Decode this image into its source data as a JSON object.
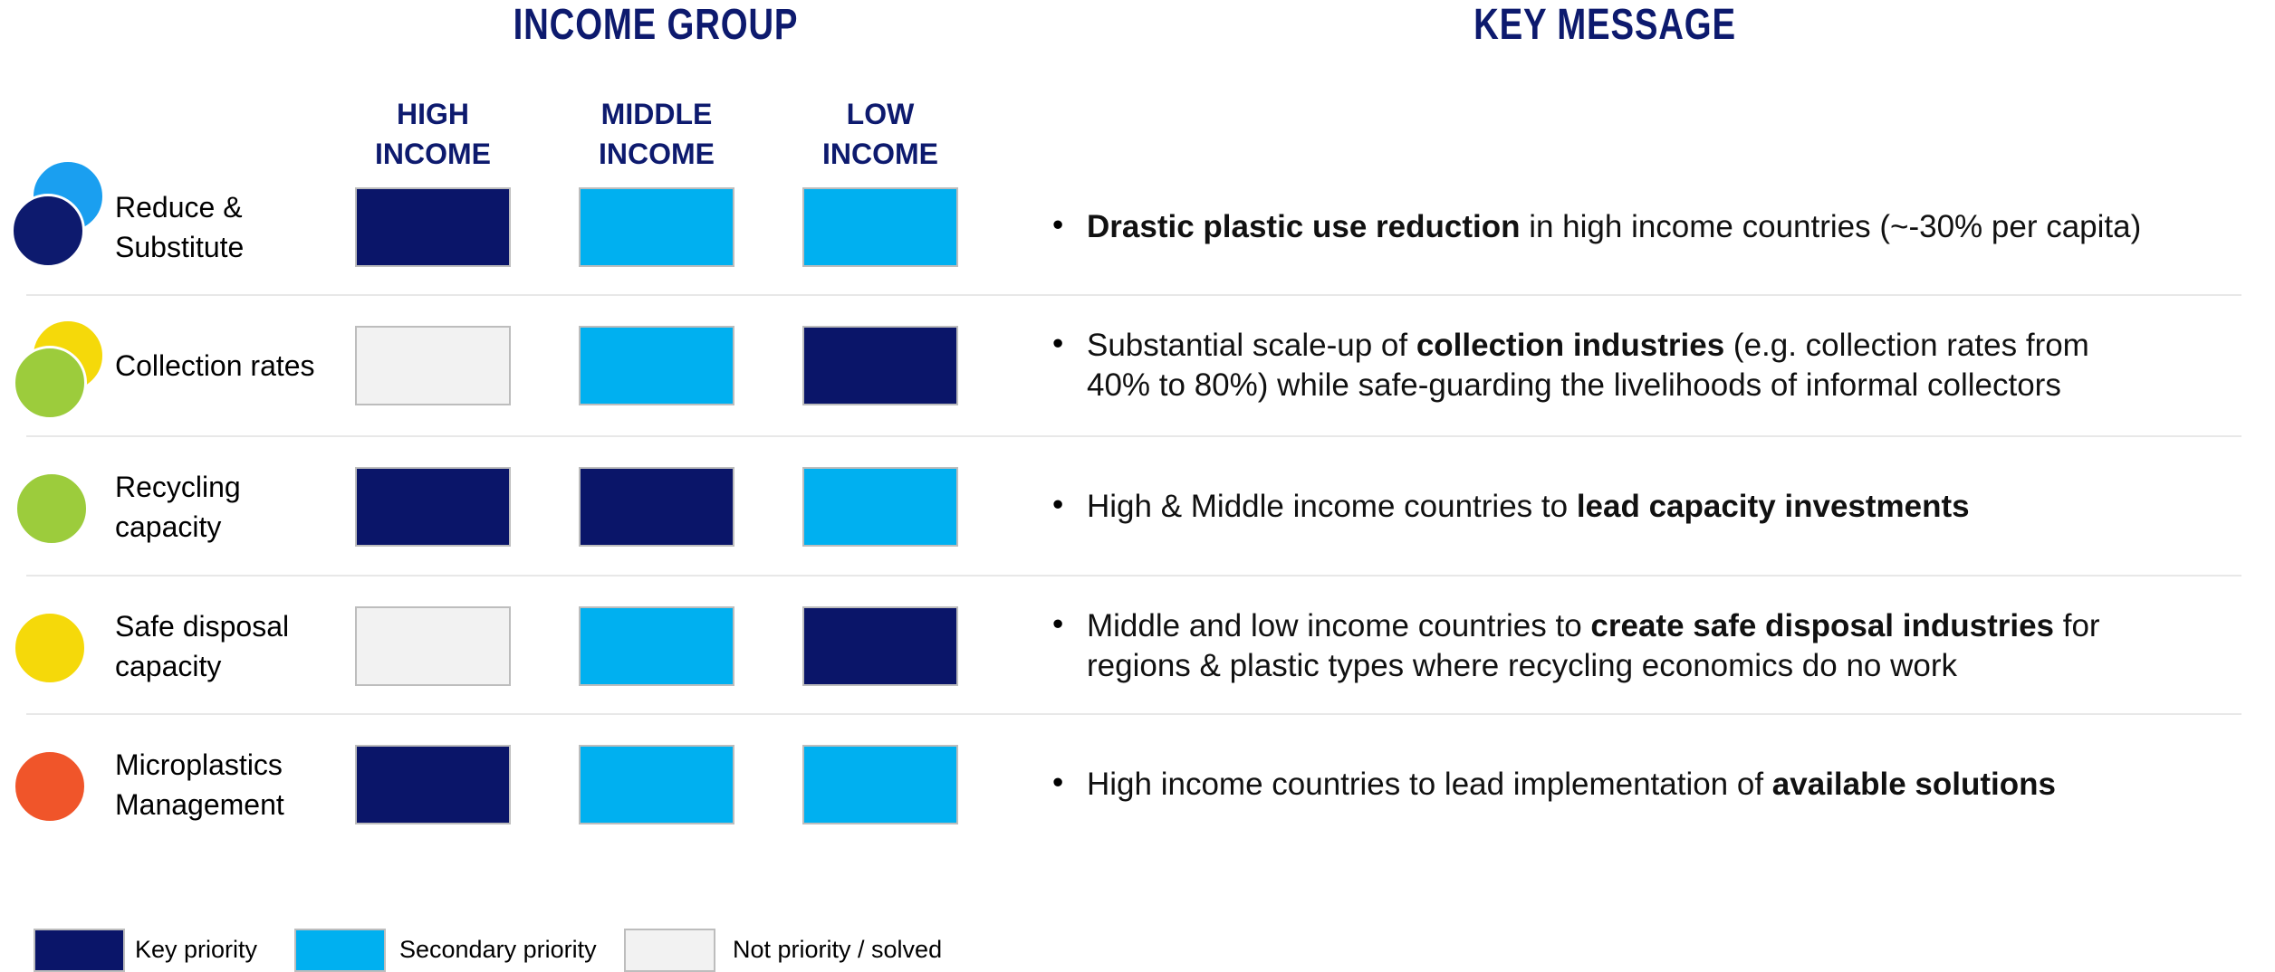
{
  "header": {
    "left_title": "INCOME GROUP",
    "right_title": "KEY MESSAGE"
  },
  "columns": [
    [
      "HIGH",
      "INCOME"
    ],
    [
      "MIDDLE",
      "INCOME"
    ],
    [
      "LOW",
      "INCOME"
    ]
  ],
  "rows": [
    {
      "label": [
        "Reduce &",
        "Substitute"
      ],
      "icons": [
        "#1a9ff0",
        "#0d1a6e"
      ],
      "cells": [
        "#0a1569",
        "#00b0f0",
        "#00b0f0"
      ],
      "message": [
        [
          {
            "text": "Drastic plastic use reduction",
            "bold": true
          },
          {
            "text": " in high income countries (~-30% per capita)"
          }
        ]
      ]
    },
    {
      "label": [
        "Collection rates"
      ],
      "icons": [
        "#f5d90a",
        "#9ccc3c"
      ],
      "cells": [
        "#f2f2f2",
        "#00b0f0",
        "#0a1569"
      ],
      "message": [
        [
          {
            "text": "Substantial scale-up of "
          },
          {
            "text": "collection industries",
            "bold": true
          },
          {
            "text": " (e.g. collection rates from"
          }
        ],
        [
          {
            "text": "40% to 80%) while safe-guarding the livelihoods of informal collectors"
          }
        ]
      ]
    },
    {
      "label": [
        "Recycling",
        "capacity"
      ],
      "icons": [
        "#9ccc3c"
      ],
      "cells": [
        "#0a1569",
        "#0a1569",
        "#00b0f0"
      ],
      "message": [
        [
          {
            "text": "High & Middle income countries to "
          },
          {
            "text": "lead capacity investments",
            "bold": true
          }
        ]
      ]
    },
    {
      "label": [
        "Safe disposal",
        "capacity"
      ],
      "icons": [
        "#f5d90a"
      ],
      "cells": [
        "#f2f2f2",
        "#00b0f0",
        "#0a1569"
      ],
      "message": [
        [
          {
            "text": "Middle and low income countries to "
          },
          {
            "text": "create safe disposal industries",
            "bold": true
          },
          {
            "text": " for"
          }
        ],
        [
          {
            "text": "regions & plastic types where recycling economics do no work"
          }
        ]
      ]
    },
    {
      "label": [
        "Microplastics",
        "Management"
      ],
      "icons": [
        "#f0552a"
      ],
      "cells": [
        "#0a1569",
        "#00b0f0",
        "#00b0f0"
      ],
      "message": [
        [
          {
            "text": "High income countries to lead implementation of "
          },
          {
            "text": "available solutions",
            "bold": true
          }
        ]
      ]
    }
  ],
  "legend": [
    {
      "label": "Key priority",
      "color": "#0a1569"
    },
    {
      "label": "Secondary priority",
      "color": "#00b0f0"
    },
    {
      "label": "Not priority / solved",
      "color": "#f2f2f2"
    }
  ]
}
